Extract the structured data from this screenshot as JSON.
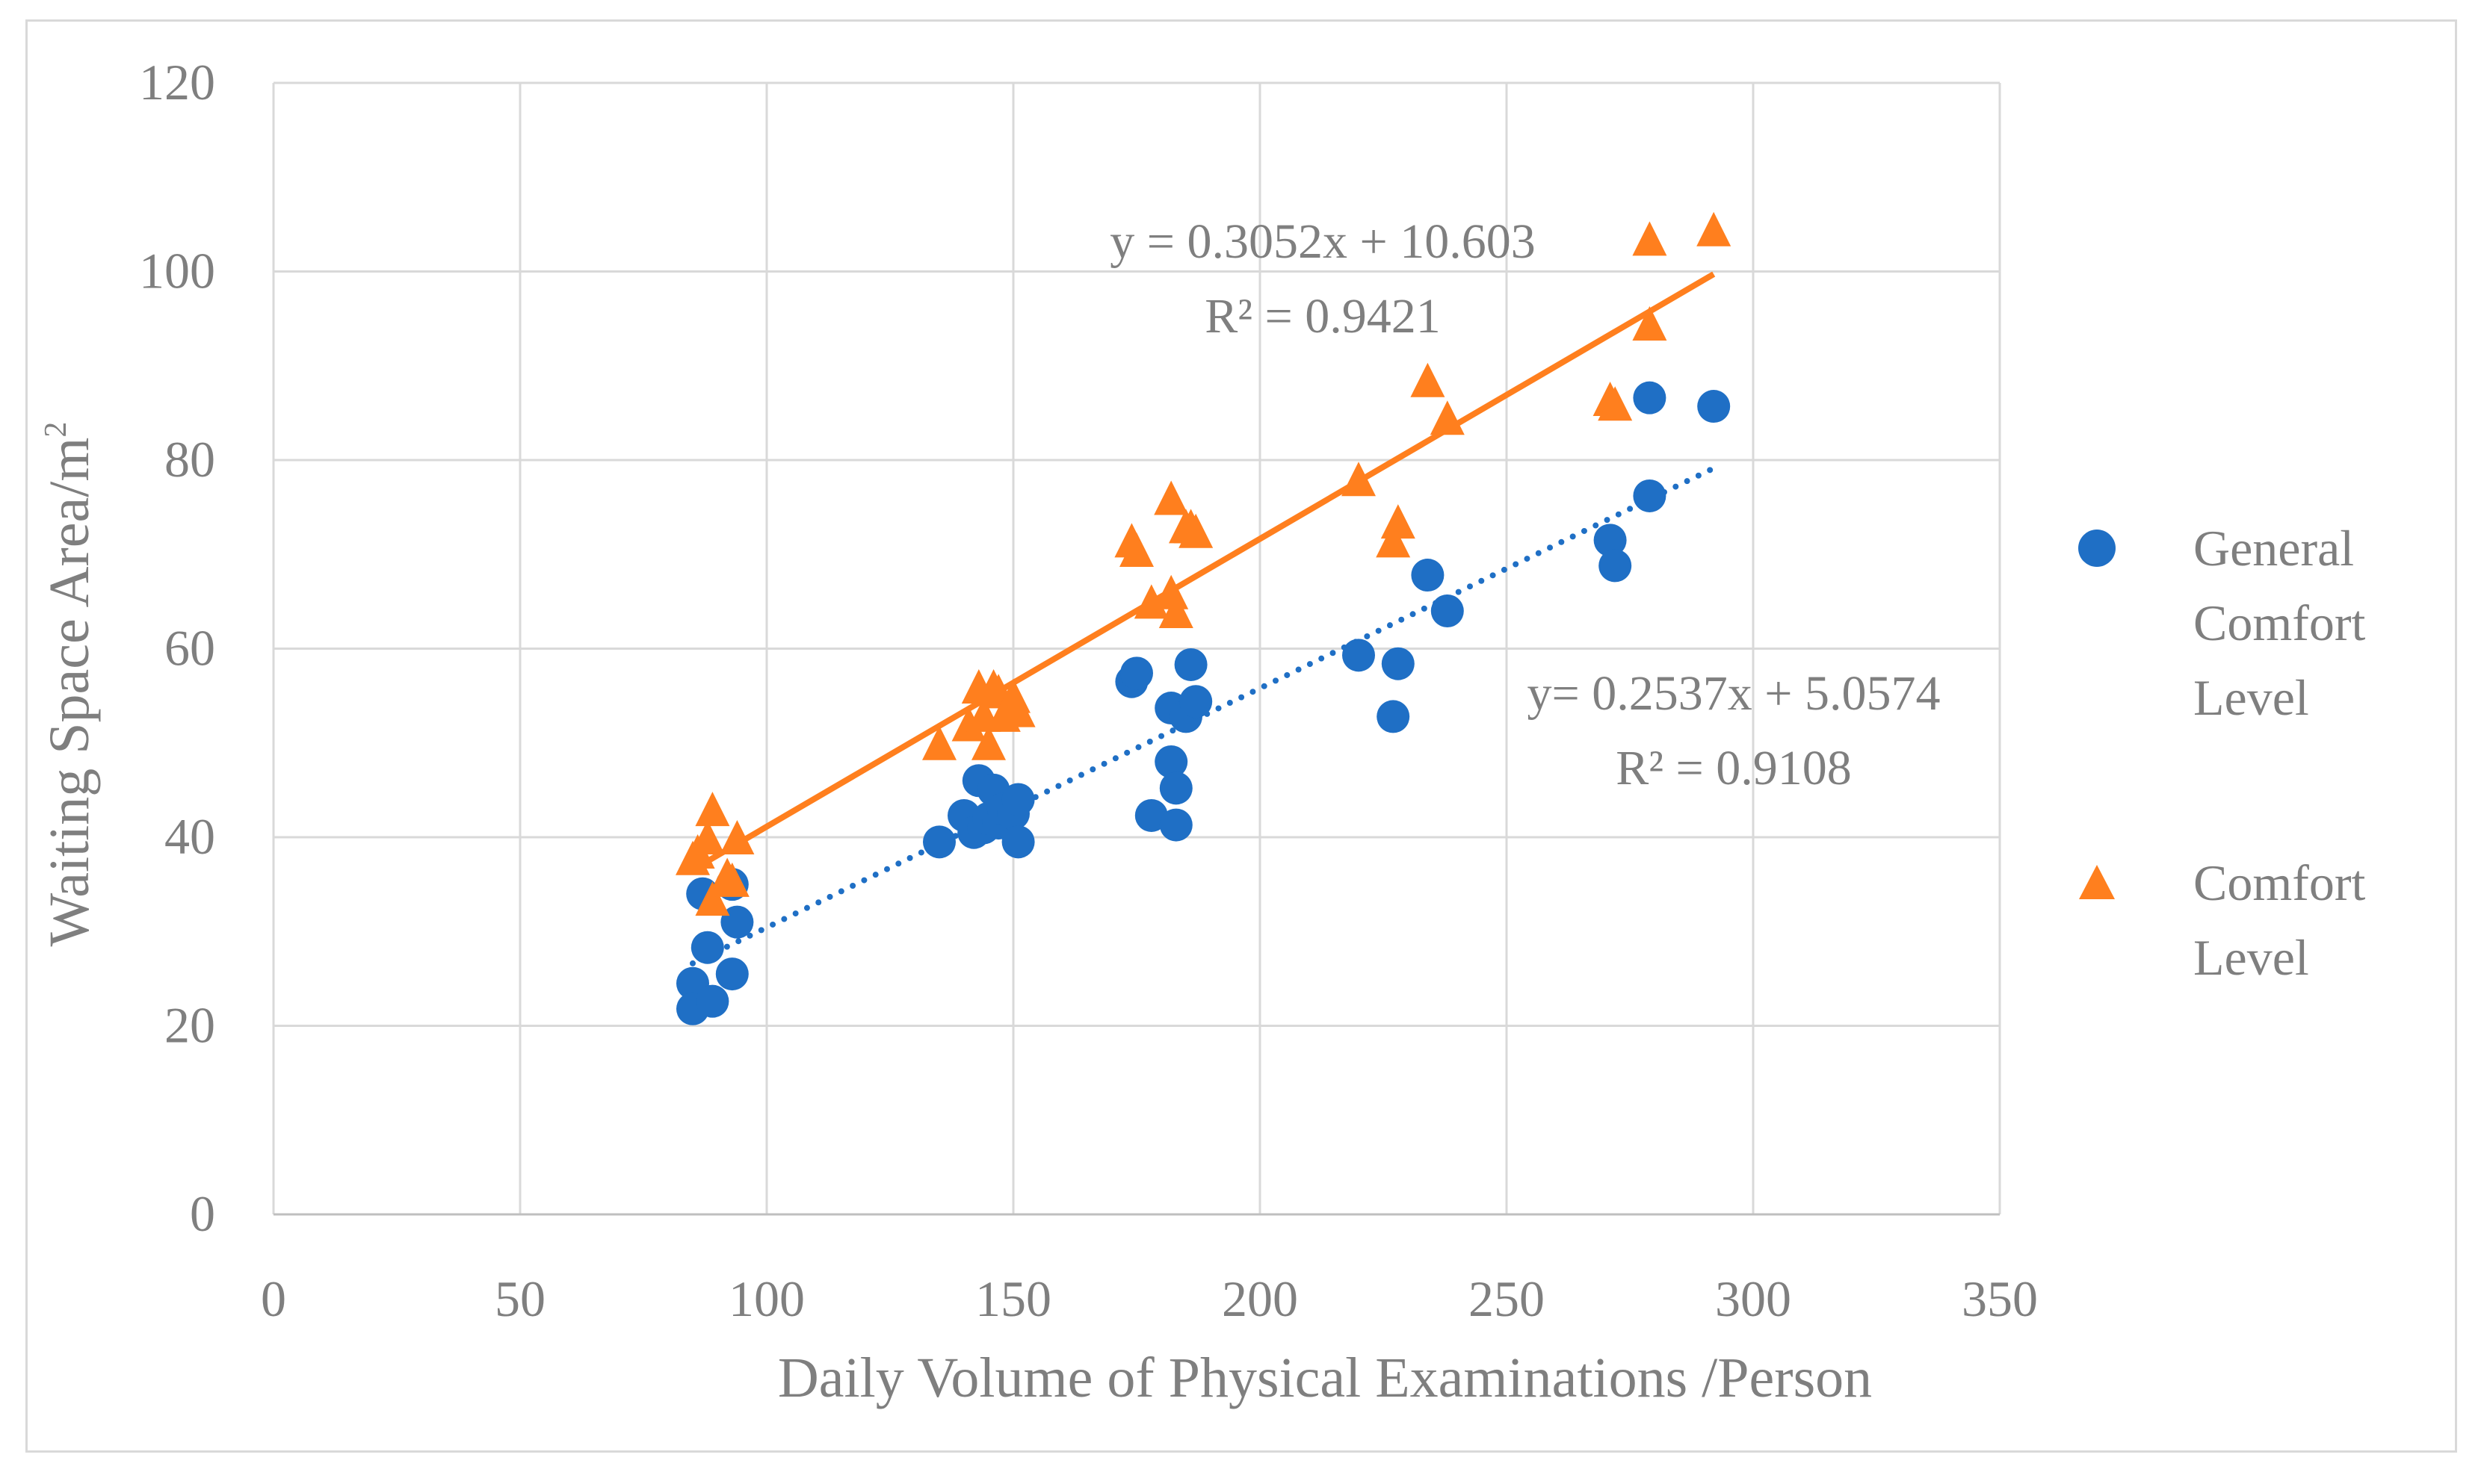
{
  "chart_data": {
    "type": "scatter",
    "title": "",
    "xlabel": "Daily Volume of Physical Examinations /Person",
    "ylabel": "Waiting Space Area/m",
    "ylabel_superscript": "2",
    "xlim": [
      0,
      350
    ],
    "ylim": [
      0,
      120
    ],
    "x_ticks": [
      0,
      50,
      100,
      150,
      200,
      250,
      300,
      350
    ],
    "y_ticks": [
      0,
      20,
      40,
      60,
      80,
      100,
      120
    ],
    "grid": true,
    "legend_position": "right",
    "series": [
      {
        "name": "General Comfort Level",
        "legend_lines": [
          "General",
          "Comfort",
          "Level"
        ],
        "marker": "circle",
        "color": "#1f6fc5",
        "trendline": {
          "style": "dotted",
          "slope": 0.2537,
          "intercept": 5.0574,
          "x_range": [
            85,
            292
          ],
          "equation": "y= 0.2537x + 5.0574",
          "r2": "R² = 0.9108"
        },
        "points": [
          [
            85,
            24.5
          ],
          [
            85,
            21.8
          ],
          [
            87,
            34
          ],
          [
            88,
            28.3
          ],
          [
            89,
            22.6
          ],
          [
            93,
            25.5
          ],
          [
            93,
            35
          ],
          [
            94,
            31
          ],
          [
            135,
            39.5
          ],
          [
            140,
            42.3
          ],
          [
            142,
            40.5
          ],
          [
            143,
            46
          ],
          [
            144,
            41
          ],
          [
            145,
            42
          ],
          [
            146,
            45
          ],
          [
            147,
            41.5
          ],
          [
            148,
            43
          ],
          [
            150,
            42.5
          ],
          [
            151,
            44
          ],
          [
            151,
            39.5
          ],
          [
            174,
            56.5
          ],
          [
            175,
            57.4
          ],
          [
            178,
            42.3
          ],
          [
            182,
            53.7
          ],
          [
            182,
            48
          ],
          [
            183,
            45.2
          ],
          [
            183,
            41.3
          ],
          [
            185,
            52.8
          ],
          [
            186,
            58.3
          ],
          [
            187,
            54.4
          ],
          [
            220,
            59.3
          ],
          [
            227,
            52.8
          ],
          [
            228,
            58.4
          ],
          [
            234,
            67.8
          ],
          [
            238,
            64
          ],
          [
            271,
            71.5
          ],
          [
            272,
            68.8
          ],
          [
            279,
            86.6
          ],
          [
            279,
            76.2
          ],
          [
            292,
            85.7
          ]
        ]
      },
      {
        "name": "Comfort Level",
        "legend_lines": [
          "Comfort",
          "Level"
        ],
        "marker": "triangle",
        "color": "#ff7f1e",
        "trendline": {
          "style": "solid",
          "slope": 0.3052,
          "intercept": 10.603,
          "x_range": [
            86,
            292
          ],
          "equation": "y = 0.3052x + 10.603",
          "r2": "R² = 0.9421"
        },
        "points": [
          [
            85,
            37.8
          ],
          [
            86,
            38.5
          ],
          [
            88,
            40
          ],
          [
            89,
            43
          ],
          [
            89,
            33.5
          ],
          [
            92,
            36
          ],
          [
            93,
            35.5
          ],
          [
            94,
            40
          ],
          [
            135,
            50
          ],
          [
            141,
            52
          ],
          [
            143,
            56
          ],
          [
            144,
            53
          ],
          [
            145,
            50
          ],
          [
            146,
            56
          ],
          [
            147,
            55.5
          ],
          [
            148,
            53
          ],
          [
            150,
            55
          ],
          [
            151,
            53.5
          ],
          [
            174,
            71.5
          ],
          [
            175,
            70.5
          ],
          [
            178,
            65
          ],
          [
            182,
            76
          ],
          [
            182,
            66
          ],
          [
            183,
            64
          ],
          [
            185,
            73
          ],
          [
            186,
            73
          ],
          [
            187,
            72.5
          ],
          [
            220,
            78
          ],
          [
            227,
            71.5
          ],
          [
            228,
            73.5
          ],
          [
            234,
            88.5
          ],
          [
            238,
            84.5
          ],
          [
            271,
            86.5
          ],
          [
            272,
            86
          ],
          [
            279,
            94.5
          ],
          [
            279,
            103.5
          ],
          [
            292,
            104.5
          ]
        ]
      }
    ]
  }
}
